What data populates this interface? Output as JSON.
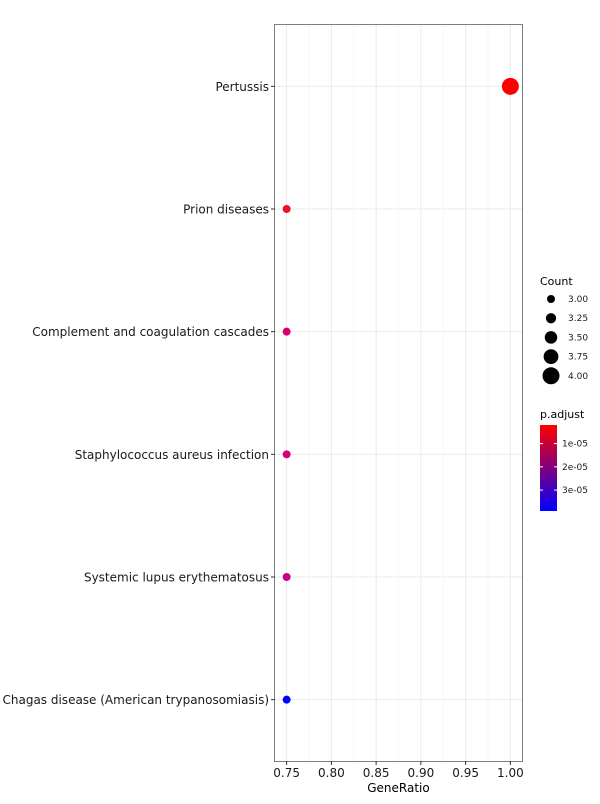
{
  "chart_data": {
    "type": "scatter",
    "xlabel": "GeneRatio",
    "ylabel": "",
    "xlim": [
      0.737,
      1.013
    ],
    "x_ticks": [
      "0.75",
      "0.80",
      "0.85",
      "0.90",
      "0.95",
      "1.00"
    ],
    "x_tick_values": [
      0.75,
      0.8,
      0.85,
      0.9,
      0.95,
      1.0
    ],
    "grid": true,
    "legend_position": "right",
    "categories": [
      "Pertussis",
      "Prion diseases",
      "Complement and coagulation cascades",
      "Staphylococcus aureus infection",
      "Systemic lupus erythematosus",
      "Chagas disease (American trypanosomiasis)"
    ],
    "points": [
      {
        "term": "Pertussis",
        "x": 1.0,
        "count": 4,
        "p_adjust": 3e-06,
        "color": "#ff0000"
      },
      {
        "term": "Prion diseases",
        "x": 0.75,
        "count": 3,
        "p_adjust": 5e-06,
        "color": "#ee0f28"
      },
      {
        "term": "Complement and coagulation cascades",
        "x": 0.75,
        "count": 3,
        "p_adjust": 1.2e-05,
        "color": "#d9006e"
      },
      {
        "term": "Staphylococcus aureus infection",
        "x": 0.75,
        "count": 3,
        "p_adjust": 1.3e-05,
        "color": "#d60078"
      },
      {
        "term": "Systemic lupus erythematosus",
        "x": 0.75,
        "count": 3,
        "p_adjust": 1.5e-05,
        "color": "#cc0088"
      },
      {
        "term": "Chagas disease (American trypanosomiasis)",
        "x": 0.75,
        "count": 3,
        "p_adjust": 3.9e-05,
        "color": "#0000ff"
      }
    ],
    "size_legend": {
      "title": "Count",
      "labels": [
        "3.00",
        "3.25",
        "3.50",
        "3.75",
        "4.00"
      ],
      "values": [
        3.0,
        3.25,
        3.5,
        3.75,
        4.0
      ]
    },
    "color_legend": {
      "title": "p.adjust",
      "labels": [
        "1e-05",
        "2e-05",
        "3e-05"
      ],
      "values": [
        1e-05,
        2e-05,
        3e-05
      ],
      "range": [
        2e-06,
        3.9e-05
      ],
      "low_color": "#ff0000",
      "high_color": "#0000ff"
    }
  }
}
